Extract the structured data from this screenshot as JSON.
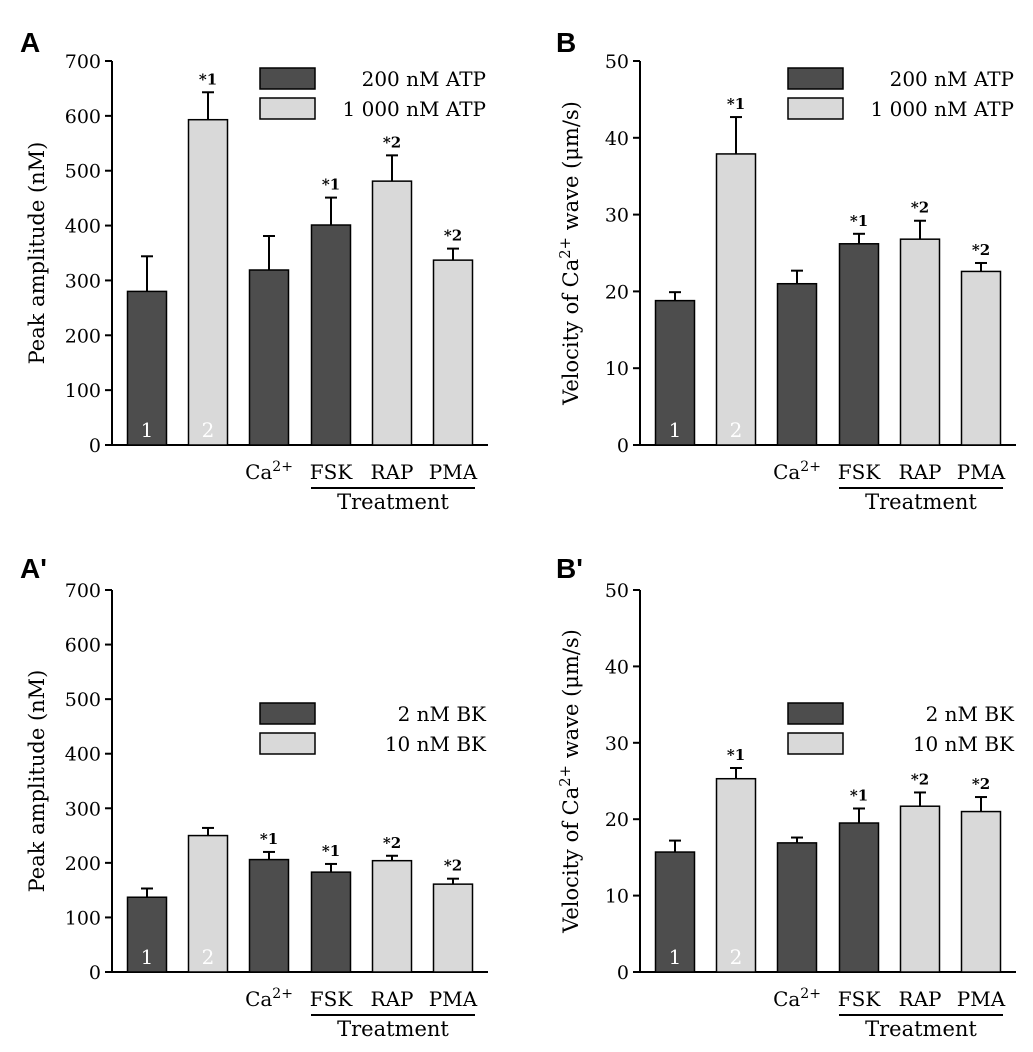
{
  "colors": {
    "dark": "#4d4d4d",
    "light": "#d9d9d9",
    "stroke": "#000000"
  },
  "chart_data": [
    {
      "panel": "A",
      "type": "bar",
      "ylabel": "Peak amplitude (nM)",
      "ylim": [
        0,
        700
      ],
      "yticks": [
        0,
        100,
        200,
        300,
        400,
        500,
        600,
        700
      ],
      "categories": [
        "",
        "",
        "Ca2+",
        "FSK",
        "RAP",
        "PMA"
      ],
      "values": [
        280,
        593,
        319,
        401,
        481,
        337
      ],
      "errors": [
        64,
        50,
        62,
        50,
        47,
        21
      ],
      "colors": [
        "dark",
        "light",
        "dark",
        "dark",
        "light",
        "light"
      ],
      "bar_labels": [
        "1",
        "2",
        "",
        "",
        "",
        ""
      ],
      "significance": [
        "",
        "*1",
        "",
        "*1",
        "*2",
        "*2"
      ],
      "group_label": "Treatment",
      "legend": [
        {
          "name": "200 nM ATP",
          "color": "dark"
        },
        {
          "name": "1 000 nM ATP",
          "color": "light"
        }
      ],
      "legend_position": "top-right"
    },
    {
      "panel": "B",
      "type": "bar",
      "ylabel": "Velocity of Ca2+ wave (μm/s)",
      "ylim": [
        0,
        50
      ],
      "yticks": [
        0,
        10,
        20,
        30,
        40,
        50
      ],
      "categories": [
        "",
        "",
        "Ca2+",
        "FSK",
        "RAP",
        "PMA"
      ],
      "values": [
        18.8,
        37.9,
        21.0,
        26.2,
        26.8,
        22.6
      ],
      "errors": [
        1.1,
        4.8,
        1.7,
        1.3,
        2.4,
        1.1
      ],
      "colors": [
        "dark",
        "light",
        "dark",
        "dark",
        "light",
        "light"
      ],
      "bar_labels": [
        "1",
        "2",
        "",
        "",
        "",
        ""
      ],
      "significance": [
        "",
        "*1",
        "",
        "*1",
        "*2",
        "*2"
      ],
      "group_label": "Treatment",
      "legend": [
        {
          "name": "200 nM ATP",
          "color": "dark"
        },
        {
          "name": "1 000 nM ATP",
          "color": "light"
        }
      ],
      "legend_position": "top-right"
    },
    {
      "panel": "A'",
      "type": "bar",
      "ylabel": "Peak amplitude (nM)",
      "ylim": [
        0,
        700
      ],
      "yticks": [
        0,
        100,
        200,
        300,
        400,
        500,
        600,
        700
      ],
      "categories": [
        "",
        "",
        "Ca2+",
        "FSK",
        "RAP",
        "PMA"
      ],
      "values": [
        137,
        250,
        206,
        183,
        204,
        161
      ],
      "errors": [
        16,
        14,
        14,
        15,
        9,
        10
      ],
      "colors": [
        "dark",
        "light",
        "dark",
        "dark",
        "light",
        "light"
      ],
      "bar_labels": [
        "1",
        "2",
        "",
        "",
        "",
        ""
      ],
      "significance": [
        "",
        "",
        "*1",
        "*1",
        "*2",
        "*2"
      ],
      "group_label": "Treatment",
      "legend": [
        {
          "name": "2 nM BK",
          "color": "dark"
        },
        {
          "name": "10 nM BK",
          "color": "light"
        }
      ],
      "legend_position": "middle-right"
    },
    {
      "panel": "B'",
      "type": "bar",
      "ylabel": "Velocity of Ca2+ wave (μm/s)",
      "ylim": [
        0,
        50
      ],
      "yticks": [
        0,
        10,
        20,
        30,
        40,
        50
      ],
      "categories": [
        "",
        "",
        "Ca2+",
        "FSK",
        "RAP",
        "PMA"
      ],
      "values": [
        15.7,
        25.3,
        16.9,
        19.5,
        21.7,
        21.0
      ],
      "errors": [
        1.5,
        1.4,
        0.7,
        1.9,
        1.8,
        1.9
      ],
      "colors": [
        "dark",
        "light",
        "dark",
        "dark",
        "light",
        "light"
      ],
      "bar_labels": [
        "1",
        "2",
        "",
        "",
        "",
        ""
      ],
      "significance": [
        "",
        "*1",
        "",
        "*1",
        "*2",
        "*2"
      ],
      "group_label": "Treatment",
      "legend": [
        {
          "name": "2 nM BK",
          "color": "dark"
        },
        {
          "name": "10 nM BK",
          "color": "light"
        }
      ],
      "legend_position": "middle-right"
    }
  ]
}
